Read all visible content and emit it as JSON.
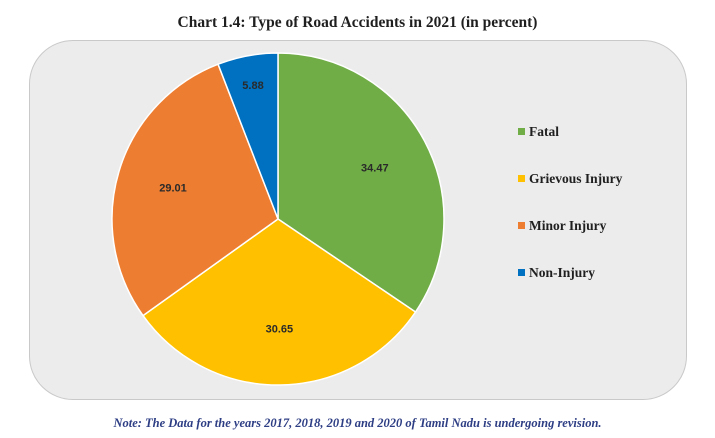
{
  "chart_data": {
    "type": "pie",
    "title": "Chart 1.4: Type of Road Accidents in 2021 (in percent)",
    "categories": [
      "Fatal",
      "Grievous Injury",
      "Minor Injury",
      "Non-Injury"
    ],
    "values": [
      34.47,
      30.65,
      29.01,
      5.88
    ],
    "labels": [
      "34.47",
      "30.65",
      "29.01",
      "5.88"
    ],
    "colors": [
      "#70ad47",
      "#ffc000",
      "#ed7d31",
      "#0070c0"
    ],
    "legend_position": "right"
  },
  "note": "Note: The Data for the years 2017, 2018, 2019 and 2020 of Tamil Nadu is undergoing revision."
}
